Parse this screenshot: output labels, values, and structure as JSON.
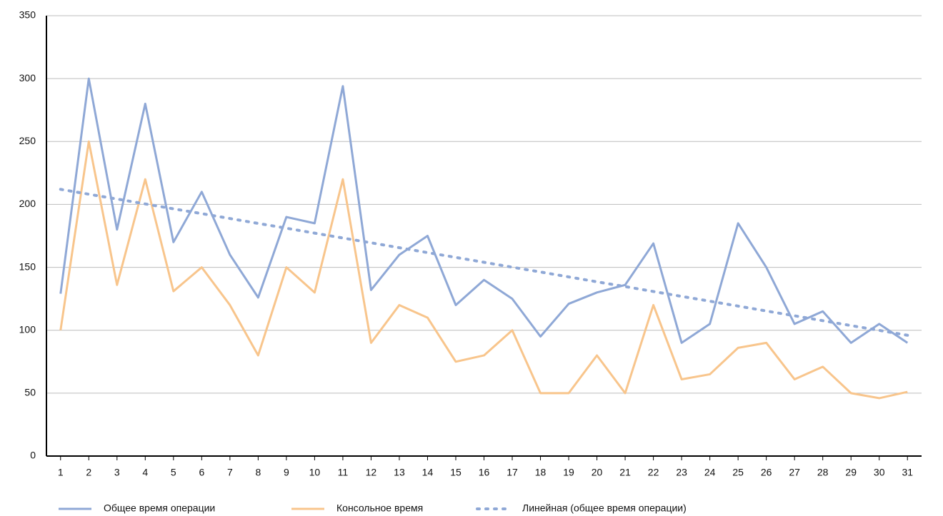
{
  "chart_data": {
    "type": "line",
    "categories": [
      1,
      2,
      3,
      4,
      5,
      6,
      7,
      8,
      9,
      10,
      11,
      12,
      13,
      14,
      15,
      16,
      17,
      18,
      19,
      20,
      21,
      22,
      23,
      24,
      25,
      26,
      27,
      28,
      29,
      30,
      31
    ],
    "series": [
      {
        "name": "Общее время операции",
        "color": "#8fa8d6",
        "style": "solid",
        "values": [
          129,
          300,
          180,
          280,
          170,
          210,
          160,
          126,
          190,
          185,
          294,
          132,
          160,
          175,
          120,
          140,
          125,
          95,
          121,
          130,
          136,
          169,
          90,
          105,
          185,
          150,
          105,
          115,
          90,
          105,
          90
        ]
      },
      {
        "name": "Консольное время",
        "color": "#f8c58c",
        "style": "solid",
        "values": [
          100,
          250,
          136,
          220,
          131,
          150,
          120,
          80,
          150,
          130,
          220,
          90,
          120,
          110,
          75,
          80,
          100,
          50,
          50,
          80,
          50,
          120,
          61,
          65,
          86,
          90,
          61,
          71,
          50,
          46,
          51
        ]
      },
      {
        "name": "Линейная (общее время операции)",
        "color": "#8fa8d6",
        "style": "dotted",
        "values": [
          212,
          208.1,
          204.3,
          200.4,
          196.5,
          192.7,
          188.8,
          184.9,
          181.1,
          177.2,
          173.3,
          169.5,
          165.6,
          161.7,
          157.9,
          154,
          150.1,
          146.3,
          142.4,
          138.5,
          134.7,
          130.8,
          126.9,
          123.1,
          119.2,
          115.3,
          111.5,
          107.6,
          103.7,
          99.9,
          96
        ]
      }
    ],
    "ylim": [
      0,
      350
    ],
    "yticks": [
      0,
      50,
      100,
      150,
      200,
      250,
      300,
      350
    ],
    "grid": true,
    "legend": "bottom"
  }
}
